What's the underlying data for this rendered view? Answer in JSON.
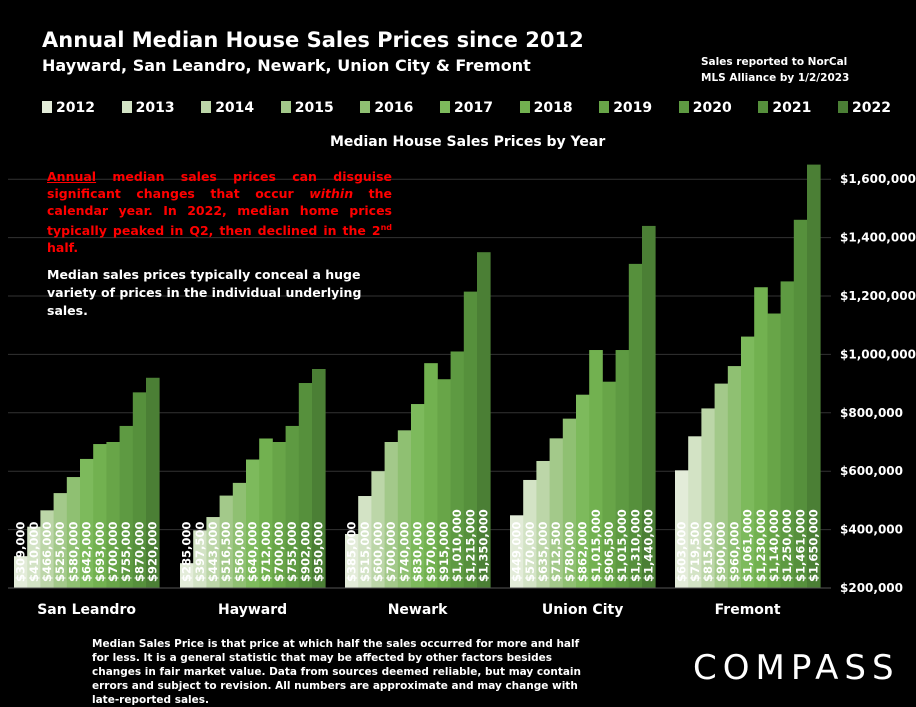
{
  "header": {
    "title": "Annual Median House Sales Prices since 2012",
    "subtitle": "Hayward, San Leandro, Newark, Union City & Fremont",
    "source_line1": "Sales reported to NorCal",
    "source_line2": "MLS Alliance by 1/2/2023"
  },
  "notes": {
    "red_p1": "Annual",
    "red_p2": " median sales prices can disguise significant changes that occur ",
    "red_p3": "within",
    "red_p4": " the calendar year. In 2022, median home prices typically peaked in Q2, then declined in the 2",
    "red_sup": "nd",
    "red_p5": " half.",
    "white": "Median sales prices typically conceal a huge variety of prices in the individual underlying sales."
  },
  "footnote": "Median Sales Price is that price at which half the sales occurred for more and half for less. It is a general statistic that may be affected by other factors besides changes in fair market value. Data from sources deemed reliable, but may contain errors and subject to revision. All numbers are approximate and may change with late-reported sales.",
  "logo": "COMPASS",
  "colors": {
    "background": "#000000",
    "series": [
      "#e3ecd9",
      "#d3e3c5",
      "#bcd6a8",
      "#a3c98a",
      "#8fc072",
      "#7dba5c",
      "#72b150",
      "#68a548",
      "#5e9a42",
      "#56903c",
      "#4b7f35"
    ]
  },
  "chart_data": {
    "type": "bar",
    "title": "Median House Sales Prices by Year",
    "categories": [
      "San Leandro",
      "Hayward",
      "Newark",
      "Union City",
      "Fremont"
    ],
    "series": [
      {
        "name": "2012",
        "values": [
          309000,
          285000,
          385000,
          449000,
          603000
        ]
      },
      {
        "name": "2013",
        "values": [
          410000,
          397500,
          515000,
          570000,
          719500
        ]
      },
      {
        "name": "2014",
        "values": [
          466000,
          443000,
          600000,
          635000,
          815000
        ]
      },
      {
        "name": "2015",
        "values": [
          525000,
          516500,
          700000,
          712500,
          900000
        ]
      },
      {
        "name": "2016",
        "values": [
          580000,
          560000,
          740000,
          780000,
          960000
        ]
      },
      {
        "name": "2017",
        "values": [
          642000,
          640000,
          830000,
          862000,
          1061000
        ]
      },
      {
        "name": "2018",
        "values": [
          693000,
          712000,
          970000,
          1015000,
          1230000
        ]
      },
      {
        "name": "2019",
        "values": [
          700000,
          700000,
          915000,
          906500,
          1140000
        ]
      },
      {
        "name": "2020",
        "values": [
          755000,
          755000,
          1010000,
          1015000,
          1250000
        ]
      },
      {
        "name": "2021",
        "values": [
          870000,
          902000,
          1215000,
          1310000,
          1461000
        ]
      },
      {
        "name": "2022",
        "values": [
          920000,
          950000,
          1350000,
          1440000,
          1650000
        ]
      }
    ],
    "labels": [
      [
        "$309,000",
        "$410,000",
        "$466,000",
        "$525,000",
        "$580,000",
        "$642,000",
        "$693,000",
        "$700,000",
        "$755,000",
        "$870,000",
        "$920,000"
      ],
      [
        "$285,000",
        "$397,500",
        "$443,000",
        "$516,500",
        "$560,000",
        "$640,000",
        "$712,000",
        "$700,000",
        "$755,000",
        "$902,000",
        "$950,000"
      ],
      [
        "$385,000",
        "$515,000",
        "$600,000",
        "$700,000",
        "$740,000",
        "$830,000",
        "$970,000",
        "$915,000",
        "$1,010,000",
        "$1,215,000",
        "$1,350,000"
      ],
      [
        "$449,000",
        "$570,000",
        "$635,000",
        "$712,500",
        "$780,000",
        "$862,000",
        "$1,015,000",
        "$906,500",
        "$1,015,000",
        "$1,310,000",
        "$1,440,000"
      ],
      [
        "$603,000",
        "$719,500",
        "$815,000",
        "$900,000",
        "$960,000",
        "$1,061,000",
        "$1,230,000",
        "$1,140,000",
        "$1,250,000",
        "$1,461,000",
        "$1,650,000"
      ]
    ],
    "yticks": [
      "$200,000",
      "$400,000",
      "$600,000",
      "$800,000",
      "$1,000,000",
      "$1,200,000",
      "$1,400,000",
      "$1,600,000"
    ],
    "ytick_values": [
      200000,
      400000,
      600000,
      800000,
      1000000,
      1200000,
      1400000,
      1600000
    ],
    "ylim": [
      200000,
      1700000
    ],
    "legend_position": "top",
    "grid": true
  }
}
